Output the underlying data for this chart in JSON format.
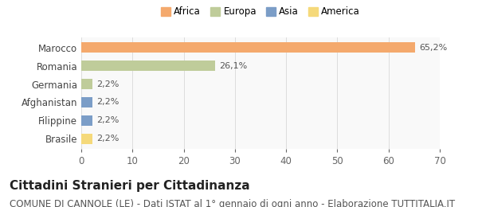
{
  "countries_bottom_to_top": [
    "Brasile",
    "Filippine",
    "Afghanistan",
    "Germania",
    "Romania",
    "Marocco"
  ],
  "values_bottom_to_top": [
    2.2,
    2.2,
    2.2,
    2.2,
    26.1,
    65.2
  ],
  "labels_bottom_to_top": [
    "2,2%",
    "2,2%",
    "2,2%",
    "2,2%",
    "26,1%",
    "65,2%"
  ],
  "colors_bottom_to_top": [
    "#F5D97A",
    "#7B9DC7",
    "#7B9DC7",
    "#BFCC9A",
    "#BFCC9A",
    "#F4A96D"
  ],
  "legend_items": [
    {
      "label": "Africa",
      "color": "#F4A96D"
    },
    {
      "label": "Europa",
      "color": "#BFCC9A"
    },
    {
      "label": "Asia",
      "color": "#7B9DC7"
    },
    {
      "label": "America",
      "color": "#F5D97A"
    }
  ],
  "xlim": [
    0,
    70
  ],
  "xticks": [
    0,
    10,
    20,
    30,
    40,
    50,
    60,
    70
  ],
  "title": "Cittadini Stranieri per Cittadinanza",
  "subtitle": "COMUNE DI CANNOLE (LE) - Dati ISTAT al 1° gennaio di ogni anno - Elaborazione TUTTITALIA.IT",
  "background_color": "#ffffff",
  "plot_bg_color": "#f9f9f9",
  "bar_height": 0.55,
  "title_fontsize": 11,
  "subtitle_fontsize": 8.5,
  "label_fontsize": 8,
  "tick_fontsize": 8.5
}
